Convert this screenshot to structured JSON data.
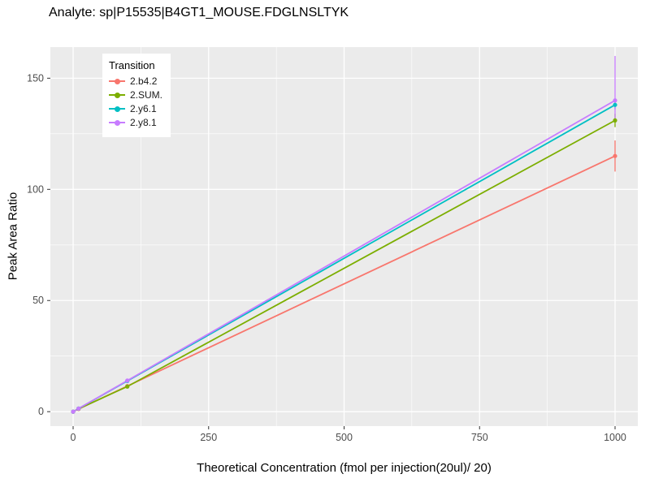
{
  "chart_data": {
    "type": "line",
    "title": "Analyte: sp|P15535|B4GT1_MOUSE.FDGLNSLTYK",
    "xlabel": "Theoretical Concentration (fmol per injection(20ul)/ 20)",
    "ylabel": "Peak Area Ratio",
    "legend_title": "Transition",
    "legend_position": "top-left-inside",
    "panel_bg": "#EBEBEB",
    "grid_color": "#FFFFFF",
    "tick_label_color": "#4D4D4D",
    "tick_mark_color": "#333333",
    "x_ticks": [
      0,
      250,
      500,
      750,
      1000
    ],
    "y_ticks": [
      0,
      50,
      100,
      150
    ],
    "x_minor_ticks": [
      125,
      375,
      625,
      875
    ],
    "y_minor_ticks": [
      25,
      75,
      125
    ],
    "x_domain": [
      -42,
      1042
    ],
    "y_domain": [
      -6.5,
      164
    ],
    "series": [
      {
        "name": "2.b4.2",
        "color": "#F8766D",
        "x": [
          0,
          10,
          100,
          1000
        ],
        "y": [
          0,
          1.2,
          11.5,
          115
        ],
        "yerr_low": [
          0,
          0,
          0,
          7
        ],
        "yerr_high": [
          0,
          0,
          0,
          7
        ]
      },
      {
        "name": "2.SUM.",
        "color": "#7CAE00",
        "x": [
          0,
          10,
          100,
          1000
        ],
        "y": [
          0,
          1.3,
          11.3,
          131
        ],
        "yerr_low": [
          0,
          0,
          0.8,
          3
        ],
        "yerr_high": [
          0,
          0,
          0.8,
          3
        ]
      },
      {
        "name": "2.y6.1",
        "color": "#00BFC4",
        "x": [
          0,
          10,
          100,
          1000
        ],
        "y": [
          0,
          1.4,
          13.8,
          138
        ],
        "yerr_low": [
          0,
          0,
          0,
          2
        ],
        "yerr_high": [
          0,
          0,
          0,
          2
        ]
      },
      {
        "name": "2.y8.1",
        "color": "#C77CFF",
        "x": [
          0,
          10,
          100,
          1000
        ],
        "y": [
          0,
          1.4,
          14,
          140
        ],
        "yerr_low": [
          0,
          0,
          0,
          8
        ],
        "yerr_high": [
          0,
          0,
          0,
          20
        ]
      }
    ]
  }
}
